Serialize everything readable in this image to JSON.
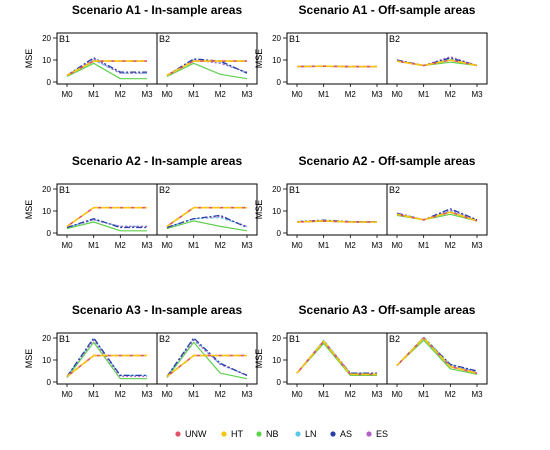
{
  "legend": [
    {
      "name": "UNW",
      "color": "#DF536B"
    },
    {
      "name": "HT",
      "color": "#F5C710"
    },
    {
      "name": "NB",
      "color": "#61D04F"
    },
    {
      "name": "LN",
      "color": "#5BC8E8"
    },
    {
      "name": "AS",
      "color": "#2B3FA8"
    },
    {
      "name": "ES",
      "color": "#B35FCA"
    }
  ],
  "chart_data": [
    {
      "type": "line",
      "title": "Scenario A1 - In-sample areas",
      "ylabel": "MSE",
      "categories": [
        "M0",
        "M1",
        "M2",
        "M3"
      ],
      "ylim": [
        0,
        20
      ],
      "yticks": [
        0,
        10,
        20
      ],
      "panels": [
        {
          "label": "B1",
          "series": [
            {
              "name": "UNW",
              "values": [
                3,
                9.5,
                9.5,
                9.5
              ]
            },
            {
              "name": "HT",
              "values": [
                3,
                9.5,
                9.5,
                9.5
              ]
            },
            {
              "name": "NB",
              "values": [
                2.5,
                8.5,
                1.5,
                1.5
              ]
            },
            {
              "name": "LN",
              "values": [
                3,
                10,
                4,
                4
              ]
            },
            {
              "name": "AS",
              "values": [
                3,
                11,
                4.5,
                4.5
              ]
            },
            {
              "name": "ES",
              "values": [
                3,
                10.5,
                4,
                4
              ]
            }
          ]
        },
        {
          "label": "B2",
          "series": [
            {
              "name": "UNW",
              "values": [
                3,
                9.5,
                9.5,
                9.5
              ]
            },
            {
              "name": "HT",
              "values": [
                3,
                9.5,
                9.5,
                9.5
              ]
            },
            {
              "name": "NB",
              "values": [
                2.5,
                8.5,
                3.5,
                1.5
              ]
            },
            {
              "name": "LN",
              "values": [
                3,
                10,
                9,
                4
              ]
            },
            {
              "name": "AS",
              "values": [
                3,
                10.5,
                9.5,
                4
              ]
            },
            {
              "name": "ES",
              "values": [
                3,
                10,
                8.5,
                4.5
              ]
            }
          ]
        }
      ]
    },
    {
      "type": "line",
      "title": "Scenario A1 - Off-sample areas",
      "ylabel": "MSE",
      "categories": [
        "M0",
        "M1",
        "M2",
        "M3"
      ],
      "ylim": [
        0,
        20
      ],
      "yticks": [
        0,
        10,
        20
      ],
      "panels": [
        {
          "label": "B1",
          "series": [
            {
              "name": "UNW",
              "values": [
                7,
                7.2,
                7,
                7
              ]
            },
            {
              "name": "HT",
              "values": [
                7,
                7.2,
                7,
                7
              ]
            },
            {
              "name": "NB",
              "values": [
                7,
                7.2,
                7,
                7
              ]
            },
            {
              "name": "LN",
              "values": [
                7,
                7.2,
                7,
                7
              ]
            },
            {
              "name": "AS",
              "values": [
                7,
                7.2,
                7,
                7
              ]
            },
            {
              "name": "ES",
              "values": [
                7,
                7.2,
                7,
                7
              ]
            }
          ]
        },
        {
          "label": "B2",
          "series": [
            {
              "name": "UNW",
              "values": [
                9.5,
                7.5,
                10,
                7.5
              ]
            },
            {
              "name": "HT",
              "values": [
                9.5,
                7.5,
                10,
                7.5
              ]
            },
            {
              "name": "NB",
              "values": [
                9.5,
                7.5,
                9,
                7.5
              ]
            },
            {
              "name": "LN",
              "values": [
                9.5,
                7.5,
                10.5,
                7.5
              ]
            },
            {
              "name": "AS",
              "values": [
                10,
                7.5,
                11,
                7.5
              ]
            },
            {
              "name": "ES",
              "values": [
                10,
                7.5,
                11.5,
                7.5
              ]
            }
          ]
        }
      ]
    },
    {
      "type": "line",
      "title": "Scenario A2 - In-sample areas",
      "ylabel": "MSE",
      "categories": [
        "M0",
        "M1",
        "M2",
        "M3"
      ],
      "ylim": [
        0,
        20
      ],
      "yticks": [
        0,
        10,
        20
      ],
      "panels": [
        {
          "label": "B1",
          "series": [
            {
              "name": "UNW",
              "values": [
                3,
                11.5,
                11.5,
                11.5
              ]
            },
            {
              "name": "HT",
              "values": [
                3,
                11.5,
                11.5,
                11.5
              ]
            },
            {
              "name": "NB",
              "values": [
                2,
                5,
                1,
                1
              ]
            },
            {
              "name": "LN",
              "values": [
                2.5,
                6,
                3,
                3
              ]
            },
            {
              "name": "AS",
              "values": [
                2.5,
                6.5,
                2.5,
                2.5
              ]
            },
            {
              "name": "ES",
              "values": [
                2.5,
                6,
                3,
                3
              ]
            }
          ]
        },
        {
          "label": "B2",
          "series": [
            {
              "name": "UNW",
              "values": [
                3,
                11.5,
                11.5,
                11.5
              ]
            },
            {
              "name": "HT",
              "values": [
                3,
                11.5,
                11.5,
                11.5
              ]
            },
            {
              "name": "NB",
              "values": [
                2,
                5.5,
                3,
                1
              ]
            },
            {
              "name": "LN",
              "values": [
                2.5,
                6.5,
                7,
                3
              ]
            },
            {
              "name": "AS",
              "values": [
                2.5,
                6.5,
                8,
                2.5
              ]
            },
            {
              "name": "ES",
              "values": [
                2.5,
                6.5,
                7.5,
                3
              ]
            }
          ]
        }
      ]
    },
    {
      "type": "line",
      "title": "Scenario A2 - Off-sample areas",
      "ylabel": "MSE",
      "categories": [
        "M0",
        "M1",
        "M2",
        "M3"
      ],
      "ylim": [
        0,
        20
      ],
      "yticks": [
        0,
        10,
        20
      ],
      "panels": [
        {
          "label": "B1",
          "series": [
            {
              "name": "UNW",
              "values": [
                5,
                5.5,
                5,
                5
              ]
            },
            {
              "name": "HT",
              "values": [
                5,
                5.5,
                5,
                5
              ]
            },
            {
              "name": "NB",
              "values": [
                5,
                5.3,
                5,
                5
              ]
            },
            {
              "name": "LN",
              "values": [
                5,
                5.5,
                5,
                5
              ]
            },
            {
              "name": "AS",
              "values": [
                5.2,
                5.8,
                5.2,
                5.2
              ]
            },
            {
              "name": "ES",
              "values": [
                5,
                5.6,
                5,
                5
              ]
            }
          ]
        },
        {
          "label": "B2",
          "series": [
            {
              "name": "UNW",
              "values": [
                8.5,
                6,
                9.5,
                5.5
              ]
            },
            {
              "name": "HT",
              "values": [
                8.5,
                6,
                9.5,
                5.5
              ]
            },
            {
              "name": "NB",
              "values": [
                8,
                6,
                8.5,
                5.5
              ]
            },
            {
              "name": "LN",
              "values": [
                8.5,
                6,
                10,
                5.5
              ]
            },
            {
              "name": "AS",
              "values": [
                9,
                6,
                11,
                6
              ]
            },
            {
              "name": "ES",
              "values": [
                9,
                6,
                10.5,
                6
              ]
            }
          ]
        }
      ]
    },
    {
      "type": "line",
      "title": "Scenario A3 - In-sample areas",
      "ylabel": "MSE",
      "categories": [
        "M0",
        "M1",
        "M2",
        "M3"
      ],
      "ylim": [
        0,
        20
      ],
      "yticks": [
        0,
        10,
        20
      ],
      "panels": [
        {
          "label": "B1",
          "series": [
            {
              "name": "UNW",
              "values": [
                2.5,
                12,
                12,
                12
              ]
            },
            {
              "name": "HT",
              "values": [
                2.5,
                12,
                12,
                12
              ]
            },
            {
              "name": "NB",
              "values": [
                2,
                18,
                1.5,
                1.5
              ]
            },
            {
              "name": "LN",
              "values": [
                2.5,
                19.5,
                3,
                3
              ]
            },
            {
              "name": "AS",
              "values": [
                2.5,
                20,
                3,
                3
              ]
            },
            {
              "name": "ES",
              "values": [
                2.5,
                19,
                2.5,
                2.5
              ]
            }
          ]
        },
        {
          "label": "B2",
          "series": [
            {
              "name": "UNW",
              "values": [
                2.5,
                12,
                12,
                12
              ]
            },
            {
              "name": "HT",
              "values": [
                2.5,
                12,
                12,
                12
              ]
            },
            {
              "name": "NB",
              "values": [
                2,
                18,
                4,
                1.5
              ]
            },
            {
              "name": "LN",
              "values": [
                2.5,
                19.5,
                8,
                3
              ]
            },
            {
              "name": "AS",
              "values": [
                2.5,
                20,
                8.5,
                3
              ]
            },
            {
              "name": "ES",
              "values": [
                2.5,
                19,
                8,
                3
              ]
            }
          ]
        }
      ]
    },
    {
      "type": "line",
      "title": "Scenario A3 - Off-sample areas",
      "ylabel": "MSE",
      "categories": [
        "M0",
        "M1",
        "M2",
        "M3"
      ],
      "ylim": [
        0,
        20
      ],
      "yticks": [
        0,
        10,
        20
      ],
      "panels": [
        {
          "label": "B1",
          "series": [
            {
              "name": "UNW",
              "values": [
                4,
                18.5,
                3.5,
                3.5
              ]
            },
            {
              "name": "HT",
              "values": [
                4,
                18.5,
                3.5,
                3.5
              ]
            },
            {
              "name": "NB",
              "values": [
                4,
                17.5,
                3,
                3
              ]
            },
            {
              "name": "LN",
              "values": [
                4,
                19,
                4,
                4
              ]
            },
            {
              "name": "AS",
              "values": [
                4,
                18.5,
                4,
                4
              ]
            },
            {
              "name": "ES",
              "values": [
                4,
                18.5,
                4,
                4
              ]
            }
          ]
        },
        {
          "label": "B2",
          "series": [
            {
              "name": "UNW",
              "values": [
                7.5,
                20,
                7,
                4
              ]
            },
            {
              "name": "HT",
              "values": [
                7.5,
                20,
                7,
                4
              ]
            },
            {
              "name": "NB",
              "values": [
                7.5,
                19,
                6,
                3.5
              ]
            },
            {
              "name": "LN",
              "values": [
                7.5,
                20.5,
                8,
                4.5
              ]
            },
            {
              "name": "AS",
              "values": [
                7.5,
                20,
                8,
                5
              ]
            },
            {
              "name": "ES",
              "values": [
                7.5,
                20,
                7.5,
                4.5
              ]
            }
          ]
        }
      ]
    }
  ]
}
